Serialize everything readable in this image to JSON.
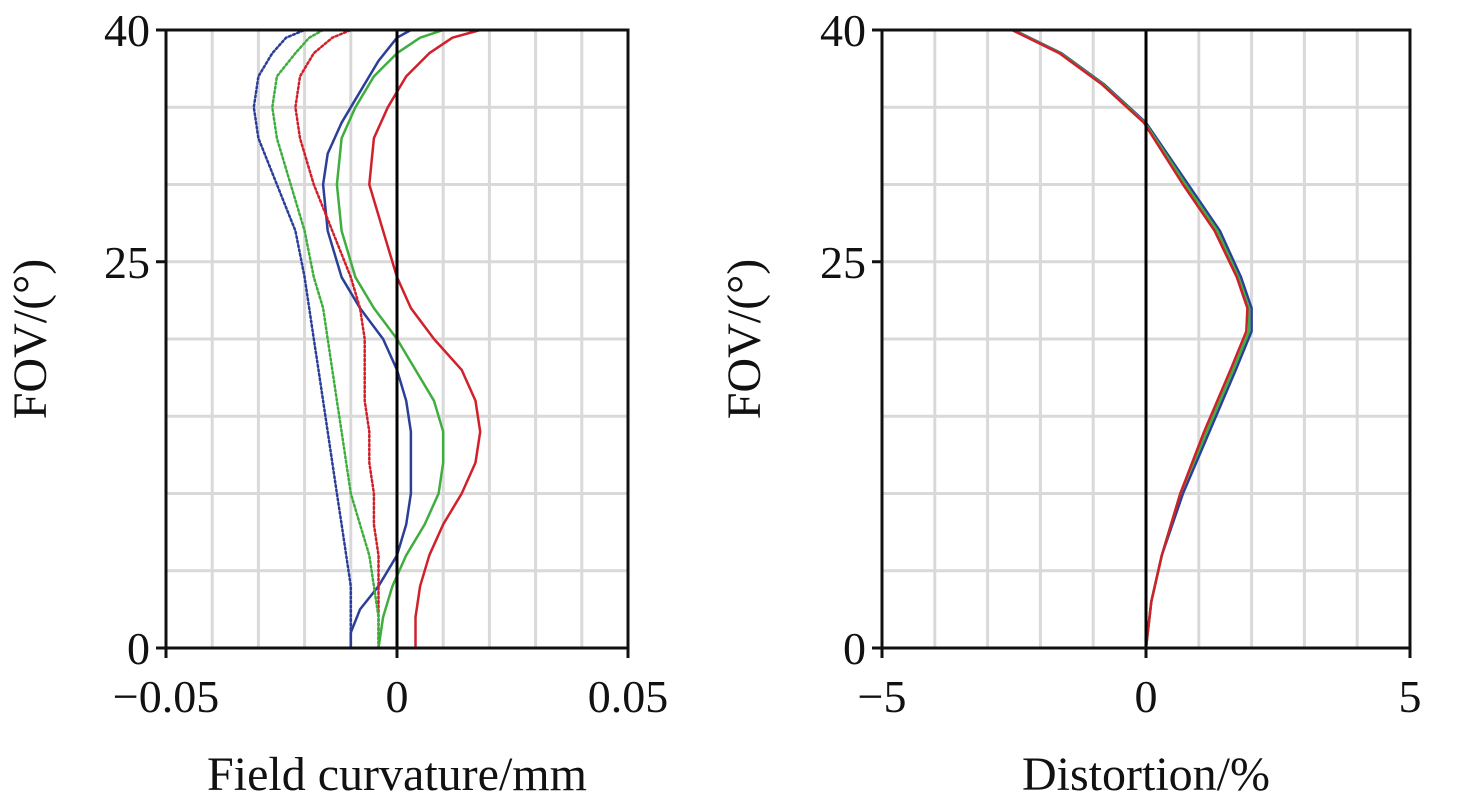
{
  "chart_data": [
    {
      "type": "line",
      "xlabel": "Field curvature/mm",
      "ylabel": "FOV/(°)",
      "xlim": [
        -0.05,
        0.05
      ],
      "ylim": [
        0,
        40
      ],
      "xticks": [
        -0.05,
        0,
        0.05
      ],
      "xtick_labels": [
        "−0.05",
        "0",
        "0.05"
      ],
      "yticks": [
        0,
        25,
        40
      ],
      "ytick_labels": [
        "0",
        "25",
        "40"
      ],
      "x_minor_step": 0.01,
      "y_minor_step": 5,
      "grid": true,
      "series": [
        {
          "color": "#d0202a",
          "style": "solid",
          "points": [
            [
              0.004,
              0
            ],
            [
              0.004,
              2
            ],
            [
              0.005,
              4
            ],
            [
              0.007,
              6
            ],
            [
              0.01,
              8
            ],
            [
              0.014,
              10
            ],
            [
              0.017,
              12
            ],
            [
              0.018,
              14
            ],
            [
              0.017,
              16
            ],
            [
              0.014,
              18
            ],
            [
              0.008,
              20
            ],
            [
              0.003,
              22
            ],
            [
              0.0,
              24
            ],
            [
              -0.003,
              27
            ],
            [
              -0.006,
              30
            ],
            [
              -0.005,
              33
            ],
            [
              -0.002,
              35
            ],
            [
              0.002,
              37
            ],
            [
              0.007,
              38.5
            ],
            [
              0.012,
              39.5
            ],
            [
              0.018,
              40
            ]
          ]
        },
        {
          "color": "#3fae3f",
          "style": "solid",
          "points": [
            [
              -0.004,
              0
            ],
            [
              -0.003,
              2
            ],
            [
              -0.001,
              4
            ],
            [
              0.002,
              6
            ],
            [
              0.006,
              8
            ],
            [
              0.009,
              10
            ],
            [
              0.01,
              12
            ],
            [
              0.01,
              14
            ],
            [
              0.008,
              16
            ],
            [
              0.004,
              18
            ],
            [
              0.0,
              20
            ],
            [
              -0.005,
              22
            ],
            [
              -0.009,
              24
            ],
            [
              -0.012,
              27
            ],
            [
              -0.013,
              30
            ],
            [
              -0.012,
              33
            ],
            [
              -0.009,
              35
            ],
            [
              -0.005,
              37
            ],
            [
              0.0,
              38.5
            ],
            [
              0.005,
              39.5
            ],
            [
              0.01,
              40
            ]
          ]
        },
        {
          "color": "#2b3f98",
          "style": "solid",
          "points": [
            [
              -0.01,
              0
            ],
            [
              -0.01,
              1
            ],
            [
              -0.008,
              2.5
            ],
            [
              -0.004,
              4
            ],
            [
              0.0,
              6
            ],
            [
              0.002,
              8
            ],
            [
              0.003,
              10
            ],
            [
              0.003,
              12
            ],
            [
              0.003,
              14
            ],
            [
              0.002,
              16
            ],
            [
              0.0,
              18
            ],
            [
              -0.003,
              20
            ],
            [
              -0.008,
              22
            ],
            [
              -0.012,
              24
            ],
            [
              -0.015,
              27
            ],
            [
              -0.016,
              30
            ],
            [
              -0.015,
              32
            ],
            [
              -0.012,
              34
            ],
            [
              -0.008,
              36
            ],
            [
              -0.004,
              38
            ],
            [
              0.0,
              39.5
            ],
            [
              0.003,
              40
            ]
          ]
        },
        {
          "color": "#d0202a",
          "style": "dotted",
          "points": [
            [
              -0.004,
              0
            ],
            [
              -0.004,
              2
            ],
            [
              -0.004,
              4
            ],
            [
              -0.004,
              6
            ],
            [
              -0.005,
              8
            ],
            [
              -0.005,
              10
            ],
            [
              -0.006,
              12
            ],
            [
              -0.006,
              14
            ],
            [
              -0.007,
              16
            ],
            [
              -0.007,
              18
            ],
            [
              -0.007,
              20
            ],
            [
              -0.008,
              22
            ],
            [
              -0.01,
              24
            ],
            [
              -0.014,
              27
            ],
            [
              -0.018,
              30
            ],
            [
              -0.021,
              33
            ],
            [
              -0.022,
              35
            ],
            [
              -0.021,
              37
            ],
            [
              -0.018,
              38.5
            ],
            [
              -0.014,
              39.5
            ],
            [
              -0.01,
              40
            ]
          ]
        },
        {
          "color": "#3fae3f",
          "style": "dotted",
          "points": [
            [
              -0.004,
              0
            ],
            [
              -0.004,
              2
            ],
            [
              -0.005,
              4
            ],
            [
              -0.006,
              6
            ],
            [
              -0.008,
              8
            ],
            [
              -0.01,
              10
            ],
            [
              -0.011,
              12
            ],
            [
              -0.012,
              14
            ],
            [
              -0.013,
              16
            ],
            [
              -0.014,
              18
            ],
            [
              -0.015,
              20
            ],
            [
              -0.016,
              22
            ],
            [
              -0.018,
              24
            ],
            [
              -0.02,
              27
            ],
            [
              -0.023,
              30
            ],
            [
              -0.026,
              33
            ],
            [
              -0.027,
              35
            ],
            [
              -0.026,
              37
            ],
            [
              -0.022,
              38.5
            ],
            [
              -0.019,
              39.5
            ],
            [
              -0.016,
              40
            ]
          ]
        },
        {
          "color": "#2b3f98",
          "style": "dotted",
          "points": [
            [
              -0.01,
              0
            ],
            [
              -0.01,
              2
            ],
            [
              -0.01,
              4
            ],
            [
              -0.011,
              6
            ],
            [
              -0.012,
              8
            ],
            [
              -0.013,
              10
            ],
            [
              -0.014,
              12
            ],
            [
              -0.015,
              14
            ],
            [
              -0.016,
              16
            ],
            [
              -0.017,
              18
            ],
            [
              -0.018,
              20
            ],
            [
              -0.019,
              22
            ],
            [
              -0.02,
              24
            ],
            [
              -0.022,
              27
            ],
            [
              -0.026,
              30
            ],
            [
              -0.03,
              33
            ],
            [
              -0.031,
              35
            ],
            [
              -0.03,
              37
            ],
            [
              -0.027,
              38.5
            ],
            [
              -0.024,
              39.5
            ],
            [
              -0.02,
              40
            ]
          ]
        }
      ]
    },
    {
      "type": "line",
      "xlabel": "Distortion/%",
      "ylabel": "FOV/(°)",
      "xlim": [
        -5,
        5
      ],
      "ylim": [
        0,
        40
      ],
      "xticks": [
        -5,
        0,
        5
      ],
      "xtick_labels": [
        "−5",
        "0",
        "5"
      ],
      "yticks": [
        0,
        25,
        40
      ],
      "ytick_labels": [
        "0",
        "25",
        "40"
      ],
      "x_minor_step": 1,
      "y_minor_step": 5,
      "grid": true,
      "series": [
        {
          "color": "#2b3f98",
          "style": "solid",
          "points": [
            [
              0.0,
              0
            ],
            [
              0.1,
              3
            ],
            [
              0.3,
              6
            ],
            [
              0.7,
              10
            ],
            [
              1.2,
              14
            ],
            [
              1.7,
              18
            ],
            [
              2.0,
              20.5
            ],
            [
              2.0,
              22
            ],
            [
              1.8,
              24
            ],
            [
              1.4,
              27
            ],
            [
              0.8,
              30
            ],
            [
              0.0,
              34
            ],
            [
              -0.8,
              36.5
            ],
            [
              -1.6,
              38.5
            ],
            [
              -2.5,
              40
            ]
          ]
        },
        {
          "color": "#3fae3f",
          "style": "solid",
          "points": [
            [
              0.0,
              0
            ],
            [
              0.1,
              3
            ],
            [
              0.3,
              6
            ],
            [
              0.65,
              10
            ],
            [
              1.15,
              14
            ],
            [
              1.65,
              18
            ],
            [
              1.95,
              20.5
            ],
            [
              1.95,
              22
            ],
            [
              1.75,
              24
            ],
            [
              1.35,
              27
            ],
            [
              0.75,
              30
            ],
            [
              -0.02,
              34
            ],
            [
              -0.82,
              36.5
            ],
            [
              -1.62,
              38.5
            ],
            [
              -2.52,
              40
            ]
          ]
        },
        {
          "color": "#d0202a",
          "style": "solid",
          "points": [
            [
              0.0,
              0
            ],
            [
              0.1,
              3
            ],
            [
              0.3,
              6
            ],
            [
              0.65,
              10
            ],
            [
              1.1,
              14
            ],
            [
              1.6,
              18
            ],
            [
              1.9,
              20.5
            ],
            [
              1.92,
              22
            ],
            [
              1.72,
              24
            ],
            [
              1.3,
              27
            ],
            [
              0.7,
              30
            ],
            [
              -0.04,
              34
            ],
            [
              -0.84,
              36.5
            ],
            [
              -1.64,
              38.5
            ],
            [
              -2.54,
              40
            ]
          ]
        }
      ]
    }
  ]
}
